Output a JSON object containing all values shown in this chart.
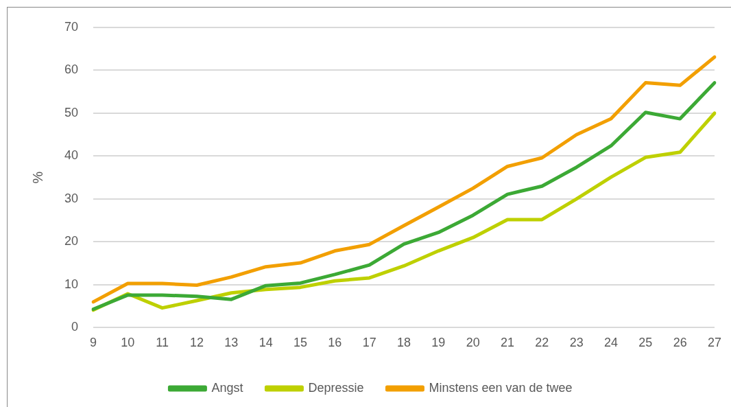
{
  "chart_data": {
    "type": "line",
    "ylabel": "%",
    "categories": [
      "9",
      "10",
      "11",
      "12",
      "13",
      "14",
      "15",
      "16",
      "17",
      "18",
      "19",
      "20",
      "21",
      "22",
      "23",
      "24",
      "25",
      "26",
      "27"
    ],
    "series": [
      {
        "name": "Angst",
        "color": "#3ca935",
        "values": [
          4.3,
          7.6,
          7.6,
          7.3,
          6.6,
          9.8,
          10.4,
          12.4,
          14.6,
          19.5,
          22.2,
          26.2,
          31.1,
          33,
          37.4,
          42.4,
          50.2,
          48.7,
          57.1
        ]
      },
      {
        "name": "Depressie",
        "color": "#bed000",
        "values": [
          4.1,
          7.9,
          4.6,
          6.3,
          8.1,
          8.9,
          9.4,
          10.9,
          11.6,
          14.4,
          17.9,
          21,
          25.2,
          25.2,
          30,
          35.1,
          39.7,
          40.9,
          50
        ]
      },
      {
        "name": "Minstens een van de twee",
        "color": "#f29f00",
        "values": [
          6,
          10.3,
          10.3,
          9.9,
          11.8,
          14.2,
          15.1,
          17.9,
          19.4,
          23.8,
          28.1,
          32.5,
          37.6,
          39.6,
          45,
          48.7,
          57.1,
          56.5,
          63.1
        ]
      }
    ],
    "ylim": [
      0,
      70
    ],
    "yticks": [
      0,
      10,
      20,
      30,
      40,
      50,
      60,
      70
    ],
    "grid": "y",
    "legend": "bottom",
    "marker": "none",
    "line_style": "solid"
  }
}
